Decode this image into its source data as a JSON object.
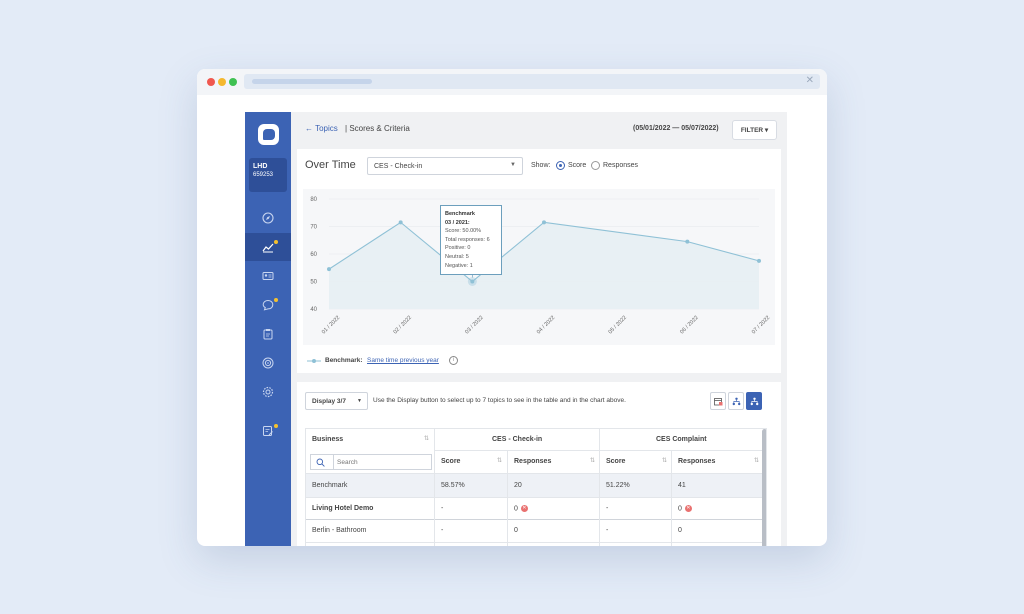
{
  "breadcrumb": {
    "back_label": "Topics",
    "current": "Scores & Criteria"
  },
  "header": {
    "date_range": "(05/01/2022 — 05/07/2022)",
    "filter_label": "FILTER"
  },
  "account": {
    "name": "LHD",
    "id": "659253"
  },
  "sidebar": {
    "icons": [
      "compass-icon",
      "trend-chart-icon",
      "id-card-icon",
      "chat-icon",
      "clipboard-icon",
      "target-icon",
      "gear-icon",
      "edit-note-icon"
    ],
    "active": "trend-chart-icon"
  },
  "over_time": {
    "title": "Over Time",
    "topic_selected": "CES - Check-in",
    "show_label": "Show:",
    "options": [
      "Score",
      "Responses"
    ],
    "selected_option": "Score"
  },
  "chart_data": {
    "type": "line",
    "x": [
      "01 / 2022",
      "02 / 2022",
      "03 / 2022",
      "04 / 2022",
      "05 / 2022",
      "06 / 2022",
      "07 / 2022"
    ],
    "y_ticks": [
      80,
      70,
      60,
      50,
      40
    ],
    "ylim": [
      40,
      80
    ],
    "grid": true,
    "series": [
      {
        "name": "Benchmark",
        "x": [
          "01 / 2022",
          "02 / 2022",
          "03 / 2022",
          "04 / 2022",
          "06 / 2022",
          "07 / 2022"
        ],
        "values": [
          54.5,
          71.5,
          50,
          71.5,
          64.5,
          57.5
        ]
      }
    ],
    "tooltip": {
      "title": "Benchmark",
      "period": "03 / 2021:",
      "lines": [
        "Score: 50.00%",
        "Total responses: 6",
        "Positive: 0",
        "Neutral: 5",
        "Negative: 1"
      ]
    },
    "legend": {
      "label": "Benchmark:",
      "link": "Same time previous year"
    },
    "colors": {
      "line": "#8fc1d6",
      "fill": "#e7eef3",
      "point": "#8fc1d6"
    }
  },
  "display": {
    "button": "Display 3/7",
    "hint": "Use the Display button to select up to 7 topics to see in the table and in the chart above."
  },
  "table": {
    "business_header": "Business",
    "groups": [
      "CES - Check-in",
      "CES Complaint"
    ],
    "sub_headers": [
      "Score",
      "Responses",
      "Score",
      "Responses"
    ],
    "search_placeholder": "Search",
    "rows": [
      {
        "name": "Benchmark",
        "values": [
          "58.57%",
          "20",
          "51.22%",
          "41"
        ],
        "errors": [
          false,
          false,
          false,
          false
        ]
      },
      {
        "name": "Living Hotel Demo",
        "values": [
          "-",
          "0",
          "-",
          "0"
        ],
        "errors": [
          false,
          true,
          false,
          true
        ]
      },
      {
        "name": "Berlin - Bathroom",
        "values": [
          "-",
          "0",
          "-",
          "0"
        ],
        "errors": [
          false,
          false,
          false,
          false
        ]
      }
    ]
  }
}
